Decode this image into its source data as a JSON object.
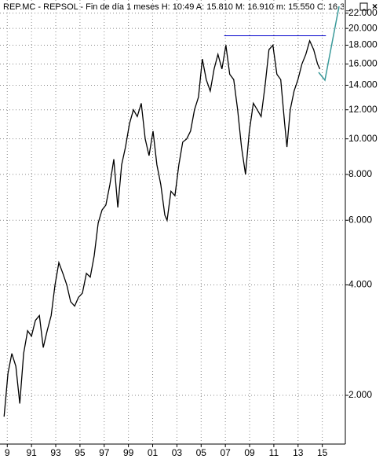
{
  "header": {
    "title": "REP.MC - REPSOL - Fin de día 1 meses H: 10:49 A: 15.810 M: 16.910 m: 15.550 C: 16.3"
  },
  "chart_data": {
    "type": "line",
    "log_scale": true,
    "grid": true,
    "color": "#000000",
    "x": [
      1988.74,
      1989.06,
      1989.38,
      1989.71,
      1990.03,
      1990.35,
      1990.68,
      1991,
      1991.32,
      1991.65,
      1991.97,
      1992.29,
      1992.62,
      1992.94,
      1993.26,
      1993.59,
      1993.91,
      1994.23,
      1994.56,
      1994.88,
      1995.2,
      1995.53,
      1995.85,
      1996.17,
      1996.5,
      1996.82,
      1997.14,
      1997.47,
      1997.79,
      1998.12,
      1998.44,
      1998.76,
      1999.09,
      1999.41,
      1999.73,
      2000.06,
      2000.38,
      2000.7,
      2001.03,
      2001.35,
      2001.67,
      2002,
      2002.19,
      2002.51,
      2002.84,
      2003.16,
      2003.48,
      2003.81,
      2004.13,
      2004.45,
      2004.78,
      2005.1,
      2005.42,
      2005.75,
      2006.07,
      2006.39,
      2006.72,
      2007.04,
      2007.36,
      2007.69,
      2008.01,
      2008.33,
      2008.66,
      2008.98,
      2009.31,
      2009.63,
      2009.95,
      2010.28,
      2010.6,
      2010.92,
      2011.25,
      2011.57,
      2011.89,
      2012.08,
      2012.35,
      2012.67,
      2012.99,
      2013.32,
      2013.64,
      2013.96,
      2014.29,
      2014.61,
      2014.8
    ],
    "values": [
      1.75,
      2.3,
      2.6,
      2.4,
      1.9,
      2.6,
      3.0,
      2.9,
      3.2,
      3.3,
      2.7,
      3.0,
      3.3,
      4.0,
      4.6,
      4.3,
      4.0,
      3.6,
      3.5,
      3.7,
      3.8,
      4.3,
      4.2,
      4.8,
      5.9,
      6.4,
      6.6,
      7.5,
      8.8,
      6.5,
      8.5,
      9.5,
      11.0,
      12.0,
      11.5,
      12.5,
      10.0,
      9.0,
      10.5,
      8.5,
      7.5,
      6.2,
      6.0,
      7.2,
      7.0,
      8.5,
      9.8,
      10.0,
      10.5,
      12.0,
      13.0,
      16.5,
      14.5,
      13.5,
      15.5,
      17.0,
      15.5,
      18.0,
      15.0,
      14.5,
      12.0,
      9.5,
      8.0,
      10.5,
      12.5,
      12.0,
      11.5,
      14.0,
      17.5,
      18.0,
      15.0,
      14.5,
      11.0,
      9.5,
      12.0,
      13.5,
      14.5,
      16.0,
      17.0,
      18.5,
      17.5,
      16.0,
      15.5
    ],
    "hline": 19.1,
    "hline_color": "#0000cc",
    "xlim": [
      1988.4,
      2016.9
    ],
    "ylim": [
      1.51,
      23.9
    ],
    "xticks": [
      {
        "value": 1989,
        "label": "9"
      },
      {
        "value": 1991,
        "label": "91"
      },
      {
        "value": 1993,
        "label": "93"
      },
      {
        "value": 1995,
        "label": "95"
      },
      {
        "value": 1997,
        "label": "97"
      },
      {
        "value": 1999,
        "label": "99"
      },
      {
        "value": 2001,
        "label": "01"
      },
      {
        "value": 2003,
        "label": "03"
      },
      {
        "value": 2005,
        "label": "05"
      },
      {
        "value": 2007,
        "label": "07"
      },
      {
        "value": 2009,
        "label": "09"
      },
      {
        "value": 2011,
        "label": "11"
      },
      {
        "value": 2013,
        "label": "13"
      },
      {
        "value": 2015,
        "label": "15"
      }
    ],
    "yticks": [
      {
        "value": 2,
        "label": "2.000"
      },
      {
        "value": 4,
        "label": "4.000"
      },
      {
        "value": 6,
        "label": "6.000"
      },
      {
        "value": 8,
        "label": "8.000"
      },
      {
        "value": 10,
        "label": "10.000"
      },
      {
        "value": 12,
        "label": "12.000"
      },
      {
        "value": 14,
        "label": "14.000"
      },
      {
        "value": 16,
        "label": "16.000"
      },
      {
        "value": 18,
        "label": "18.000"
      },
      {
        "value": 20,
        "label": "20.000"
      },
      {
        "value": 22,
        "label": "22.000"
      }
    ]
  }
}
